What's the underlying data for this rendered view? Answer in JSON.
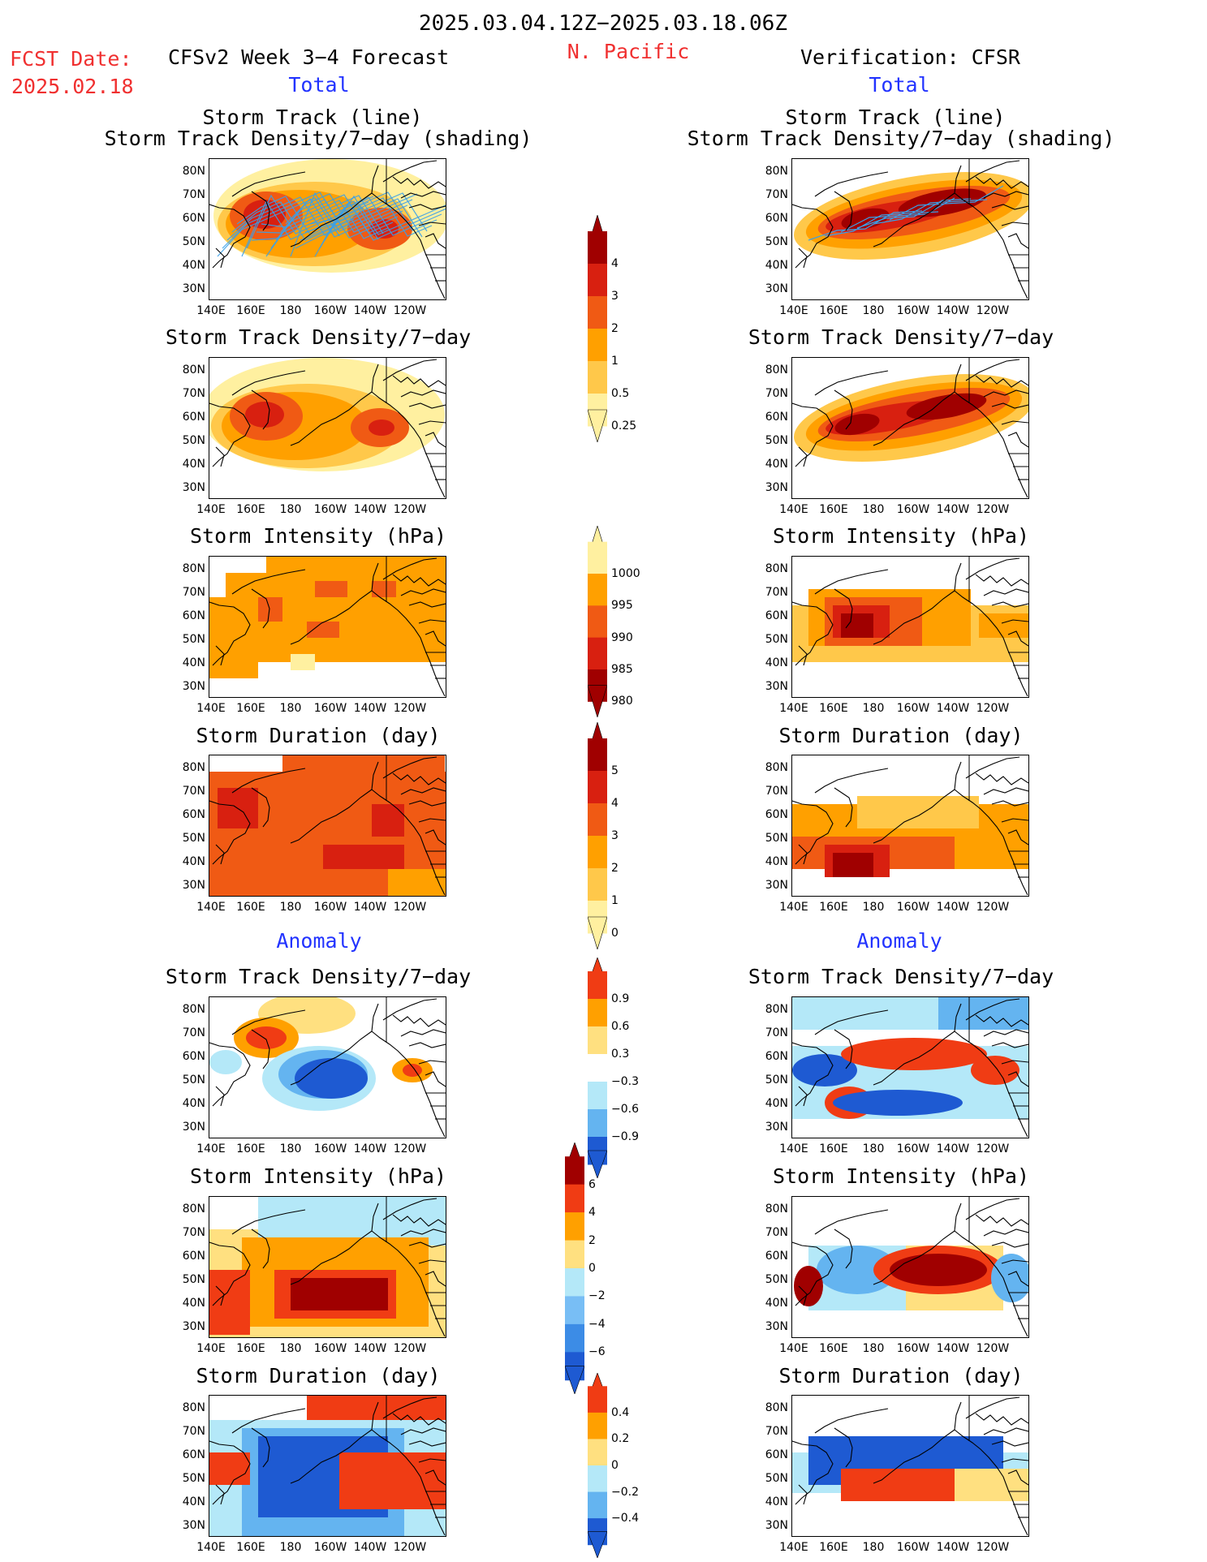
{
  "header": {
    "date_range": "2025.03.04.12Z−2025.03.18.06Z",
    "fcst_label": "FCST Date:",
    "fcst_date": "2025.02.18",
    "model_title": "CFSv2 Week 3−4 Forecast",
    "region": "N. Pacific",
    "verification_title": "Verification: CFSR"
  },
  "section_labels": {
    "total_left": "Total",
    "total_right": "Total",
    "anomaly_left": "Anomaly",
    "anomaly_right": "Anomaly"
  },
  "panel_titles": {
    "track_line": "Storm Track (line)",
    "track_shading": "Storm Track Density/7−day (shading)",
    "density": "Storm Track Density/7−day",
    "intensity": "Storm Intensity (hPa)",
    "duration": "Storm Duration (day)"
  },
  "axes": {
    "lat_labels": [
      "80N",
      "70N",
      "60N",
      "50N",
      "40N",
      "30N"
    ],
    "lon_labels": [
      "140E",
      "160E",
      "180",
      "160W",
      "140W",
      "120W"
    ]
  },
  "colorbars": {
    "density_total": {
      "levels": [
        "4",
        "3",
        "2",
        "1",
        "0.5",
        "0.25"
      ],
      "colors": [
        "#a00000",
        "#d82010",
        "#f05a14",
        "#ffa000",
        "#ffc84a",
        "#fff0a0"
      ]
    },
    "intensity_total": {
      "levels": [
        "1000",
        "995",
        "990",
        "985",
        "980"
      ],
      "colors": [
        "#fff0a0",
        "#ffa000",
        "#f05a14",
        "#d82010",
        "#a00000"
      ]
    },
    "duration_total": {
      "levels": [
        "5",
        "4",
        "3",
        "2",
        "1",
        "0"
      ],
      "colors": [
        "#a00000",
        "#d82010",
        "#f05a14",
        "#ffa000",
        "#ffc84a",
        "#fff0a0"
      ]
    },
    "density_anom": {
      "levels": [
        "0.9",
        "0.6",
        "0.3",
        "−0.3",
        "−0.6",
        "−0.9"
      ],
      "colors": [
        "#f03c14",
        "#ffa000",
        "#ffe080",
        "#ffffff",
        "#b4e8f8",
        "#64b4f0",
        "#1e5ad2"
      ]
    },
    "intensity_anom": {
      "levels": [
        "6",
        "4",
        "2",
        "0",
        "−2",
        "−4",
        "−6"
      ],
      "colors": [
        "#a00000",
        "#f03c14",
        "#ffa000",
        "#ffe080",
        "#b4e8f8",
        "#78bef5",
        "#3c8ce6",
        "#1e5ad2"
      ]
    },
    "duration_anom": {
      "levels": [
        "0.4",
        "0.2",
        "0",
        "−0.2",
        "−0.4"
      ],
      "colors": [
        "#f03c14",
        "#ffa000",
        "#ffe080",
        "#b4e8f8",
        "#64b4f0",
        "#1e5ad2"
      ]
    }
  }
}
